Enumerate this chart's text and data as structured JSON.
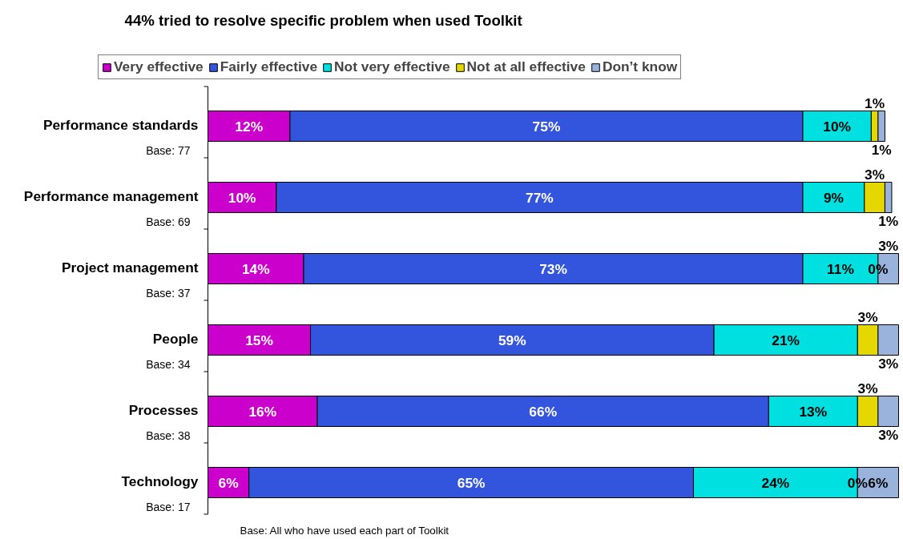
{
  "chart_data": {
    "type": "bar",
    "orientation": "horizontal",
    "stacked": true,
    "title": "44% tried to resolve specific problem when used Toolkit",
    "categories": [
      "Performance standards",
      "Performance management",
      "Project management",
      "People",
      "Processes",
      "Technology"
    ],
    "series": [
      {
        "name": "Very effective",
        "color": "#cc00cc",
        "values": [
          12,
          10,
          14,
          15,
          16,
          6
        ],
        "value_labels": [
          "12%",
          "10%",
          "14%",
          "15%",
          "16%",
          "6%"
        ]
      },
      {
        "name": "Fairly effective",
        "color": "#3355dd",
        "values": [
          75,
          77,
          73,
          59,
          66,
          65
        ],
        "value_labels": [
          "75%",
          "77%",
          "73%",
          "59%",
          "66%",
          "65%"
        ]
      },
      {
        "name": "Not very effective",
        "color": "#00e0e0",
        "values": [
          10,
          9,
          11,
          21,
          13,
          24
        ],
        "value_labels": [
          "10%",
          "9%",
          "11%",
          "21%",
          "13%",
          "24%"
        ]
      },
      {
        "name": "Not at all effective",
        "color": "#e5d800",
        "values": [
          1,
          3,
          0,
          3,
          3,
          0
        ],
        "value_labels": [
          "1%",
          "3%",
          "0%",
          "3%",
          "3%",
          "0%"
        ]
      },
      {
        "name": "Don’t know",
        "color": "#99b3dd",
        "values": [
          1,
          1,
          3,
          3,
          3,
          6
        ],
        "value_labels": [
          "1%",
          "1%",
          "3%",
          "3%",
          "3%",
          "6%"
        ]
      }
    ],
    "legend": "top",
    "annotations": [
      "Base: 77",
      "Base: 69",
      "Base: 37",
      "Base: 34",
      "Base: 38",
      "Base: 17",
      "Base: All who have used each part of Toolkit"
    ]
  }
}
